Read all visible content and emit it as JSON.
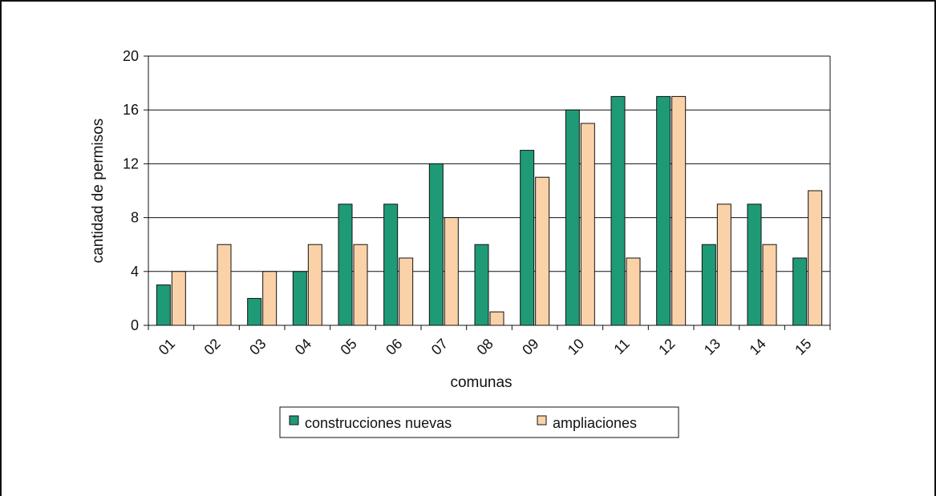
{
  "chart_data": {
    "type": "bar",
    "title": "",
    "xlabel": "comunas",
    "ylabel": "cantidad de permisos",
    "ylim": [
      0,
      20
    ],
    "yticks": [
      0,
      4,
      8,
      12,
      16,
      20
    ],
    "categories": [
      "01",
      "02",
      "03",
      "04",
      "05",
      "06",
      "07",
      "08",
      "09",
      "10",
      "11",
      "12",
      "13",
      "14",
      "15"
    ],
    "series": [
      {
        "name": "construcciones nuevas",
        "color": "#1f9a77",
        "values": [
          3,
          0,
          2,
          4,
          9,
          9,
          12,
          6,
          13,
          16,
          17,
          17,
          6,
          9,
          5
        ]
      },
      {
        "name": "ampliaciones",
        "color": "#fbd2a8",
        "values": [
          4,
          6,
          4,
          6,
          6,
          5,
          8,
          1,
          11,
          15,
          5,
          17,
          9,
          6,
          10
        ]
      }
    ],
    "grid": true,
    "legend": "bottom"
  }
}
